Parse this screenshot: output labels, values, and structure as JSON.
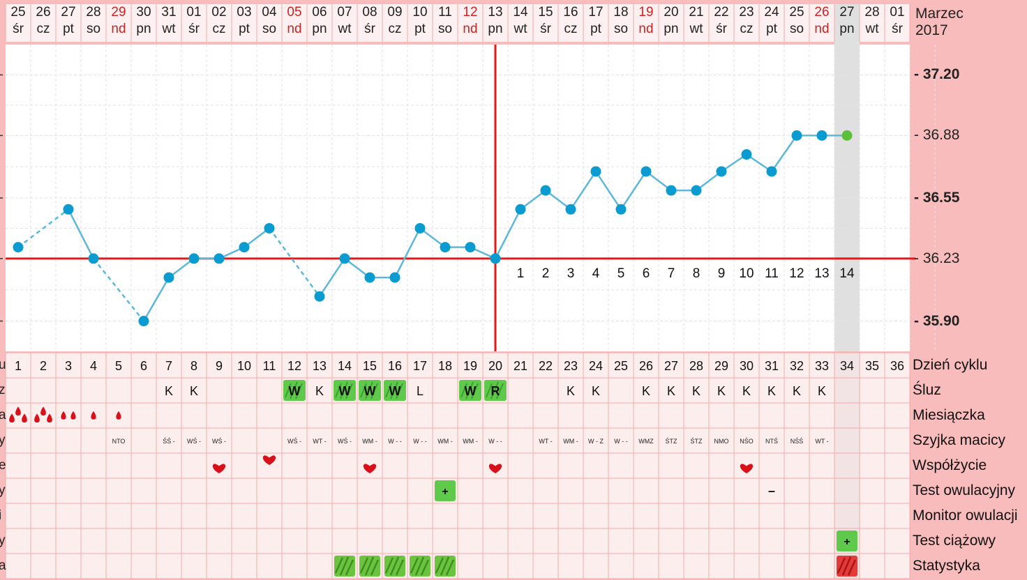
{
  "header": {
    "month": "Marzec",
    "year": "2017",
    "days": [
      {
        "num": "25",
        "name": "śr",
        "sunday": false
      },
      {
        "num": "26",
        "name": "cz",
        "sunday": false
      },
      {
        "num": "27",
        "name": "pt",
        "sunday": false
      },
      {
        "num": "28",
        "name": "so",
        "sunday": false
      },
      {
        "num": "29",
        "name": "nd",
        "sunday": true
      },
      {
        "num": "30",
        "name": "pn",
        "sunday": false
      },
      {
        "num": "31",
        "name": "wt",
        "sunday": false
      },
      {
        "num": "01",
        "name": "śr",
        "sunday": false
      },
      {
        "num": "02",
        "name": "cz",
        "sunday": false
      },
      {
        "num": "03",
        "name": "pt",
        "sunday": false
      },
      {
        "num": "04",
        "name": "so",
        "sunday": false
      },
      {
        "num": "05",
        "name": "nd",
        "sunday": true
      },
      {
        "num": "06",
        "name": "pn",
        "sunday": false
      },
      {
        "num": "07",
        "name": "wt",
        "sunday": false
      },
      {
        "num": "08",
        "name": "śr",
        "sunday": false
      },
      {
        "num": "09",
        "name": "cz",
        "sunday": false
      },
      {
        "num": "10",
        "name": "pt",
        "sunday": false
      },
      {
        "num": "11",
        "name": "so",
        "sunday": false
      },
      {
        "num": "12",
        "name": "nd",
        "sunday": true
      },
      {
        "num": "13",
        "name": "pn",
        "sunday": false
      },
      {
        "num": "14",
        "name": "wt",
        "sunday": false
      },
      {
        "num": "15",
        "name": "śr",
        "sunday": false
      },
      {
        "num": "16",
        "name": "cz",
        "sunday": false
      },
      {
        "num": "17",
        "name": "pt",
        "sunday": false
      },
      {
        "num": "18",
        "name": "so",
        "sunday": false
      },
      {
        "num": "19",
        "name": "nd",
        "sunday": true
      },
      {
        "num": "20",
        "name": "pn",
        "sunday": false
      },
      {
        "num": "21",
        "name": "wt",
        "sunday": false
      },
      {
        "num": "22",
        "name": "śr",
        "sunday": false
      },
      {
        "num": "23",
        "name": "cz",
        "sunday": false
      },
      {
        "num": "24",
        "name": "pt",
        "sunday": false
      },
      {
        "num": "25",
        "name": "so",
        "sunday": false
      },
      {
        "num": "26",
        "name": "nd",
        "sunday": true
      },
      {
        "num": "27",
        "name": "pn",
        "sunday": false
      },
      {
        "num": "28",
        "name": "wt",
        "sunday": false
      },
      {
        "num": "01",
        "name": "śr",
        "sunday": false
      }
    ]
  },
  "row_labels": {
    "cycle_day": "Dzień cyklu",
    "mucus": "Śluz",
    "menstruation": "Miesiączka",
    "cervix": "Szyjka macicy",
    "intercourse": "Współżycie",
    "ovulation_test": "Test owulacyjny",
    "ovulation_monitor": "Monitor owulacji",
    "pregnancy_test": "Test ciążowy",
    "statistics": "Statystyka"
  },
  "left_cut_letters": [
    "u",
    "z",
    "a",
    "y",
    "e",
    "y",
    "i",
    "y",
    "a"
  ],
  "colors": {
    "background": "#f9bcbc",
    "line": "#5bb8d9",
    "point": "#0a9bd1",
    "today_point": "#5cbf3a",
    "coverline": "#e81818",
    "today_column": "#e0e0e0",
    "sunday_text": "#d42020",
    "badge_green": "#5ec94a",
    "badge_red": "#e03030"
  },
  "chart_data": {
    "type": "line",
    "series": [
      {
        "values": [
          36.29,
          null,
          36.49,
          36.23,
          null,
          35.9,
          36.13,
          36.23,
          36.23,
          36.29,
          36.39,
          null,
          36.03,
          36.23,
          36.13,
          36.13,
          36.39,
          36.29,
          36.29,
          36.23,
          36.49,
          36.59,
          36.49,
          36.69,
          36.49,
          36.69,
          36.59,
          36.59,
          36.69,
          36.78,
          36.69,
          36.88,
          36.88,
          36.88,
          null,
          null
        ]
      }
    ],
    "dashed_gaps": [
      [
        0,
        2
      ],
      [
        3,
        5
      ],
      [
        10,
        12
      ]
    ],
    "today_index": 33,
    "y_ticks": [
      {
        "value": 37.2,
        "label": "- 37.20",
        "bold": true
      },
      {
        "value": 36.88,
        "label": "- 36.88",
        "bold": false
      },
      {
        "value": 36.55,
        "label": "- 36.55",
        "bold": true
      },
      {
        "value": 36.23,
        "label": "- 36.23",
        "bold": false
      },
      {
        "value": 35.9,
        "label": "- 35.90",
        "bold": true
      }
    ],
    "coverline": 36.23,
    "ovulation_index": 19,
    "post_ovulation_labels": [
      "1",
      "2",
      "3",
      "4",
      "5",
      "6",
      "7",
      "8",
      "9",
      "10",
      "11",
      "12",
      "13",
      "14"
    ],
    "ylim": [
      35.74,
      37.36
    ]
  },
  "rows": {
    "cycle_days": [
      "1",
      "2",
      "3",
      "4",
      "5",
      "6",
      "7",
      "8",
      "9",
      "10",
      "11",
      "12",
      "13",
      "14",
      "15",
      "16",
      "17",
      "18",
      "19",
      "20",
      "21",
      "22",
      "23",
      "24",
      "25",
      "26",
      "27",
      "28",
      "29",
      "30",
      "31",
      "32",
      "33",
      "34",
      "35",
      "36"
    ],
    "mucus": [
      "",
      "",
      "",
      "",
      "",
      "",
      "K",
      "K",
      "",
      "",
      "",
      "W",
      "K",
      "W",
      "W",
      "W",
      "L",
      "",
      "W",
      "R",
      "",
      "",
      "K",
      "K",
      "",
      "K",
      "K",
      "K",
      "K",
      "K",
      "K",
      "K",
      "K",
      "",
      "",
      ""
    ],
    "mucus_highlight": [
      11,
      13,
      14,
      15,
      18,
      19
    ],
    "menstruation": [
      3,
      3,
      2,
      1,
      1,
      0,
      0,
      0,
      0,
      0,
      0,
      0,
      0,
      0,
      0,
      0,
      0,
      0,
      0,
      0,
      0,
      0,
      0,
      0,
      0,
      0,
      0,
      0,
      0,
      0,
      0,
      0,
      0,
      0,
      0,
      0
    ],
    "cervix": [
      "",
      "",
      "",
      "",
      "NTO",
      "",
      "ŚŚ -",
      "WŚ -",
      "WŚ -",
      "",
      "",
      "WŚ -",
      "WT -",
      "WŚ -",
      "WM -",
      "W - -",
      "W - -",
      "WM -",
      "WM -",
      "W - -",
      "",
      "WT -",
      "WM -",
      "W - Z",
      "W - -",
      "WMZ",
      "ŚTZ",
      "ŚTZ",
      "NMO",
      "NŚO",
      "NTŚ",
      "NŚŚ",
      "WT -",
      "",
      "",
      ""
    ],
    "intercourse": [
      8,
      10,
      14,
      19,
      29
    ],
    "ovulation_test": {
      "positive": [
        {
          "index": 17,
          "label": "+"
        }
      ],
      "negative": [
        {
          "index": 30,
          "label": "–"
        }
      ]
    },
    "pregnancy_test": {
      "positive": [
        {
          "index": 33,
          "label": "+"
        }
      ]
    },
    "statistics": {
      "green": [
        13,
        14,
        15,
        16,
        17
      ],
      "red": [
        33
      ]
    }
  }
}
